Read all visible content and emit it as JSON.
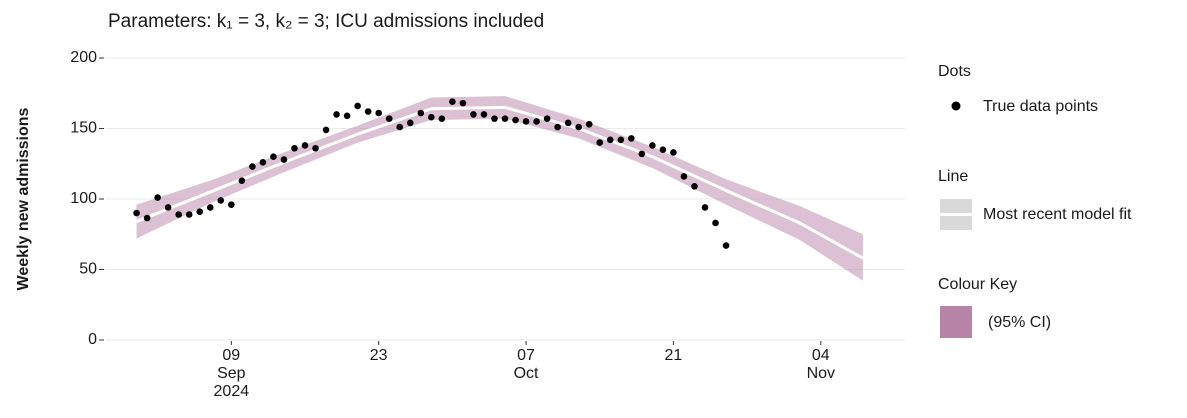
{
  "chart_data": {
    "type": "line",
    "title": "Parameters: k₁ = 3, k₂ = 3; ICU admissions included",
    "y_label": "Weekly new admissions",
    "ylim": [
      0,
      200
    ],
    "yticks": [
      0,
      50,
      100,
      150,
      200
    ],
    "xlim": [
      "2024-08-28",
      "2024-11-12"
    ],
    "xticks": [
      {
        "value": "2024-09-09",
        "label": "09\nSep\n2024"
      },
      {
        "value": "2024-09-23",
        "label": "23"
      },
      {
        "value": "2024-10-07",
        "label": "07\nOct"
      },
      {
        "value": "2024-10-21",
        "label": "21"
      },
      {
        "value": "2024-11-04",
        "label": "04\nNov"
      }
    ],
    "grid": true,
    "dots": {
      "legend_title": "Dots",
      "name": "True data points",
      "color": "#000000",
      "x": [
        "2024-08-31",
        "2024-09-01",
        "2024-09-02",
        "2024-09-03",
        "2024-09-04",
        "2024-09-05",
        "2024-09-06",
        "2024-09-07",
        "2024-09-08",
        "2024-09-09",
        "2024-09-10",
        "2024-09-11",
        "2024-09-12",
        "2024-09-13",
        "2024-09-14",
        "2024-09-15",
        "2024-09-16",
        "2024-09-17",
        "2024-09-18",
        "2024-09-19",
        "2024-09-20",
        "2024-09-21",
        "2024-09-22",
        "2024-09-23",
        "2024-09-24",
        "2024-09-25",
        "2024-09-26",
        "2024-09-27",
        "2024-09-28",
        "2024-09-29",
        "2024-09-30",
        "2024-10-01",
        "2024-10-02",
        "2024-10-03",
        "2024-10-04",
        "2024-10-05",
        "2024-10-06",
        "2024-10-07",
        "2024-10-08",
        "2024-10-09",
        "2024-10-10",
        "2024-10-11",
        "2024-10-12",
        "2024-10-13",
        "2024-10-14",
        "2024-10-15",
        "2024-10-16",
        "2024-10-17",
        "2024-10-18",
        "2024-10-19",
        "2024-10-20",
        "2024-10-21",
        "2024-10-22",
        "2024-10-23",
        "2024-10-24",
        "2024-10-25",
        "2024-10-26"
      ],
      "values": [
        90,
        86.5,
        101,
        94,
        89,
        89,
        91,
        94,
        99,
        96,
        113,
        123,
        126,
        130,
        128,
        136,
        138,
        136,
        149,
        160,
        159,
        166,
        162,
        161,
        157,
        151,
        154,
        161,
        158,
        157,
        169,
        168,
        160,
        160,
        157,
        157,
        156,
        155,
        155,
        157,
        151,
        154,
        151,
        153,
        140,
        142,
        142,
        143,
        132,
        138,
        135,
        133,
        116,
        109,
        94,
        83,
        67
      ]
    },
    "fit": {
      "legend_title": "Line",
      "name": "Most recent model fit",
      "color": "#ffffff",
      "x": [
        "2024-08-31",
        "2024-09-07",
        "2024-09-14",
        "2024-09-21",
        "2024-09-28",
        "2024-10-05",
        "2024-10-12",
        "2024-10-19",
        "2024-10-26",
        "2024-11-02",
        "2024-11-08"
      ],
      "values": [
        84,
        105,
        126,
        146,
        164,
        165,
        150,
        130,
        106,
        83,
        58
      ],
      "lower": [
        72,
        97,
        119,
        140,
        156,
        157,
        143,
        122,
        96,
        71,
        42
      ],
      "upper": [
        96,
        113,
        133,
        152,
        172,
        173,
        157,
        137,
        114,
        95,
        75
      ]
    },
    "ribbon": {
      "legend_title": "Colour Key",
      "name": "(95% CI)",
      "color": "#b784a7"
    }
  }
}
